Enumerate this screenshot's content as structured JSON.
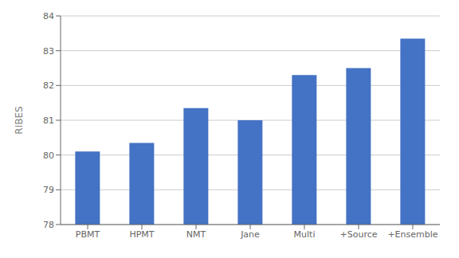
{
  "chart_data": {
    "type": "bar",
    "ylabel": "RIBES",
    "categories": [
      "PBMT",
      "HPMT",
      "NMT",
      "Jane",
      "Multi",
      "+Source",
      "+Ensemble"
    ],
    "values": [
      80.1,
      80.35,
      81.35,
      81.0,
      82.3,
      82.5,
      83.35
    ],
    "color": "#4472C4",
    "ylim": [
      78,
      84
    ],
    "yticks": [
      78,
      79,
      80,
      81,
      82,
      83,
      84
    ],
    "grid": true
  }
}
